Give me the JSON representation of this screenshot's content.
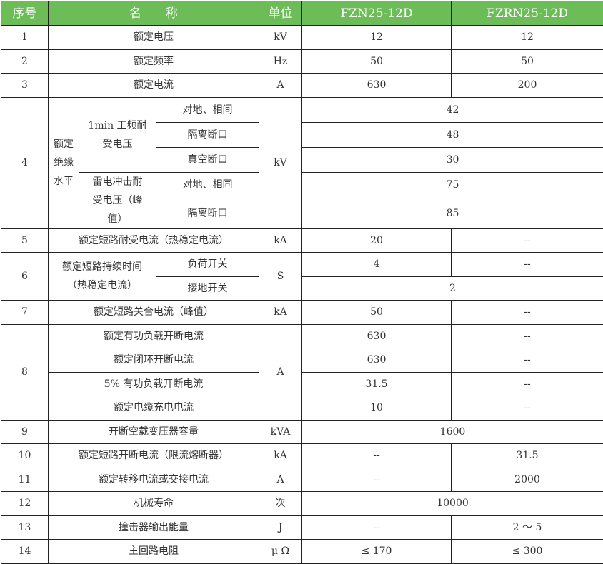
{
  "header": {
    "no": "序号",
    "name": "名　　称",
    "unit": "单位",
    "m1": "FZN25-12D",
    "m2": "FZRN25-12D"
  },
  "colors": {
    "header_bg": "#6cbd58",
    "header_text": "#ffffff"
  },
  "r1": {
    "no": "1",
    "name": "额定电压",
    "unit": "kV",
    "v1": "12",
    "v2": "12"
  },
  "r2": {
    "no": "2",
    "name": "额定频率",
    "unit": "Hz",
    "v1": "50",
    "v2": "50"
  },
  "r3": {
    "no": "3",
    "name": "额定电流",
    "unit": "A",
    "v1": "630",
    "v2": "200"
  },
  "r4": {
    "no": "4",
    "group": "额定\n绝缘\n水平",
    "sub1": "1min 工频耐\n受电压",
    "sub2": "雷电冲击耐\n受电压（峰\n值）",
    "items": [
      "对地、相间",
      "隔离断口",
      "真空断口",
      "对地、相同",
      "隔离断口"
    ],
    "unit": "kV",
    "values": [
      "42",
      "48",
      "30",
      "75",
      "85"
    ]
  },
  "r5": {
    "no": "5",
    "name": "额定短路耐受电流（热稳定电流）",
    "unit": "kA",
    "v1": "20",
    "v2": "--"
  },
  "r6": {
    "no": "6",
    "name": "额定短路持续时间\n（热稳定电流）",
    "items": [
      "负荷开关",
      "接地开关"
    ],
    "unit": "S",
    "a1": "4",
    "a2": "--",
    "b": "2"
  },
  "r7": {
    "no": "7",
    "name": "额定短路关合电流（峰值）",
    "unit": "kA",
    "v1": "50",
    "v2": "--"
  },
  "r8": {
    "no": "8",
    "unit": "A",
    "items": [
      {
        "name": "额定有功负载开断电流",
        "v1": "630",
        "v2": "--"
      },
      {
        "name": "额定闭环开断电流",
        "v1": "630",
        "v2": "--"
      },
      {
        "name": "5% 有功负载开断电流",
        "v1": "31.5",
        "v2": "--"
      },
      {
        "name": "额定电缆充电电流",
        "v1": "10",
        "v2": "--"
      }
    ]
  },
  "r9": {
    "no": "9",
    "name": "开断空载变压器容量",
    "unit": "kVA",
    "v": "1600"
  },
  "r10": {
    "no": "10",
    "name": "额定短路开断电流（限流熔断器）",
    "unit": "kA",
    "v1": "--",
    "v2": "31.5"
  },
  "r11": {
    "no": "11",
    "name": "额定转移电流或交接电流",
    "unit": "A",
    "v1": "--",
    "v2": "2000"
  },
  "r12": {
    "no": "12",
    "name": "机械寿命",
    "unit": "次",
    "v": "10000"
  },
  "r13": {
    "no": "13",
    "name": "撞击器输出能量",
    "unit": "J",
    "v1": "--",
    "v2": "2 ～ 5"
  },
  "r14": {
    "no": "14",
    "name": "主回路电阻",
    "unit": "μ Ω",
    "v1": "≤ 170",
    "v2": "≤ 300"
  }
}
